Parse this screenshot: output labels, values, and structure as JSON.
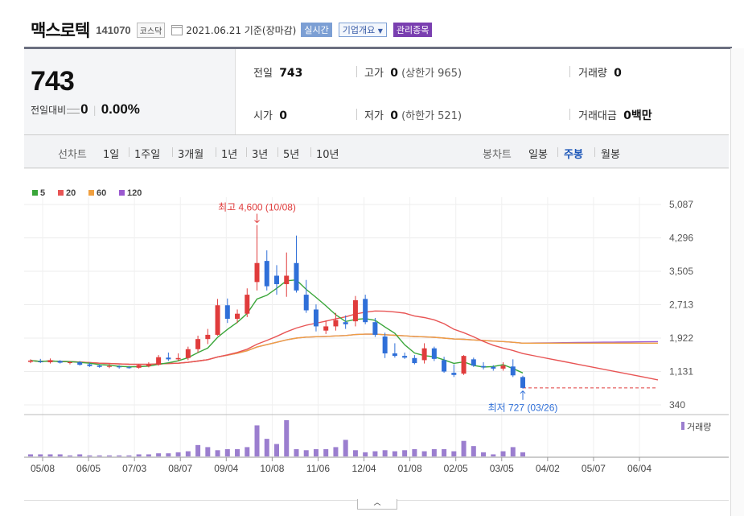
{
  "header": {
    "name": "맥스로텍",
    "code": "141070",
    "market": "코스닥",
    "date": "2021.06.21 기준(장마감)",
    "realtime_btn": "실시간",
    "company_btn": "기업개요",
    "managed_badge": "관리종목"
  },
  "price": {
    "current": "743",
    "change_label": "전일대비",
    "change_value": "0",
    "change_rate": "0.00%"
  },
  "info": {
    "prev_label": "전일",
    "prev_value": "743",
    "high_label": "고가",
    "high_value": "0",
    "high_limit": "(상한가 965)",
    "volume_label": "거래량",
    "volume_value": "0",
    "open_label": "시가",
    "open_value": "0",
    "low_label": "저가",
    "low_value": "0",
    "low_limit": "(하한가 521)",
    "amount_label": "거래대금",
    "amount_value": "0",
    "amount_unit": "백만"
  },
  "periods": {
    "line_label": "선차트",
    "line_items": [
      "1일",
      "1주일",
      "3개월",
      "1년",
      "3년",
      "5년",
      "10년"
    ],
    "candle_label": "봉차트",
    "candle_items": [
      "일봉",
      "주봉",
      "월봉"
    ],
    "candle_selected": "주봉"
  },
  "colors": {
    "ma5": "#3aa63a",
    "ma20": "#e85555",
    "ma60": "#f0a040",
    "ma120": "#9b59d0",
    "up": "#e03c3c",
    "down": "#2f6fd8",
    "volume": "#9b7ecf",
    "selected": "#1a55b8"
  },
  "chart_data": {
    "type": "candlestick",
    "legend": [
      "5",
      "20",
      "60",
      "120"
    ],
    "y_ticks": [
      "5,087",
      "4,296",
      "3,505",
      "2,713",
      "1,922",
      "1,131",
      "340"
    ],
    "ylim": [
      340,
      5087
    ],
    "x_labels": [
      "05/08",
      "06/05",
      "07/03",
      "08/07",
      "09/04",
      "10/08",
      "11/06",
      "12/04",
      "01/08",
      "02/05",
      "03/05",
      "04/02",
      "05/07",
      "06/04"
    ],
    "volume_label": "거래량",
    "annotations": {
      "high": "최고 4,600 (10/08)",
      "low": "최저 727 (03/26)"
    },
    "candles": [
      [
        1360,
        1420,
        1330,
        1390
      ],
      [
        1370,
        1430,
        1330,
        1350
      ],
      [
        1350,
        1440,
        1320,
        1400
      ],
      [
        1380,
        1400,
        1320,
        1340
      ],
      [
        1340,
        1380,
        1300,
        1350
      ],
      [
        1350,
        1380,
        1270,
        1290
      ],
      [
        1300,
        1340,
        1240,
        1260
      ],
      [
        1270,
        1300,
        1220,
        1240
      ],
      [
        1250,
        1310,
        1210,
        1260
      ],
      [
        1250,
        1280,
        1200,
        1230
      ],
      [
        1230,
        1260,
        1200,
        1220
      ],
      [
        1220,
        1300,
        1200,
        1280
      ],
      [
        1260,
        1350,
        1230,
        1300
      ],
      [
        1290,
        1520,
        1270,
        1470
      ],
      [
        1460,
        1580,
        1380,
        1420
      ],
      [
        1420,
        1560,
        1380,
        1450
      ],
      [
        1450,
        1720,
        1400,
        1660
      ],
      [
        1660,
        1980,
        1580,
        1900
      ],
      [
        1900,
        2140,
        1780,
        2000
      ],
      [
        2000,
        2850,
        1980,
        2700
      ],
      [
        2700,
        2860,
        2280,
        2380
      ],
      [
        2380,
        2600,
        2280,
        2500
      ],
      [
        2500,
        3100,
        2420,
        2950
      ],
      [
        3250,
        4600,
        3050,
        3700
      ],
      [
        3750,
        4000,
        3050,
        3150
      ],
      [
        3400,
        3650,
        2950,
        3200
      ],
      [
        3200,
        3950,
        2900,
        3400
      ],
      [
        3700,
        4350,
        3000,
        3050
      ],
      [
        2950,
        3300,
        2520,
        2580
      ],
      [
        2600,
        2720,
        2080,
        2200
      ],
      [
        2100,
        2340,
        2020,
        2200
      ],
      [
        2200,
        2520,
        2100,
        2350
      ],
      [
        2300,
        2460,
        2140,
        2250
      ],
      [
        2320,
        2920,
        2200,
        2820
      ],
      [
        2850,
        2950,
        2250,
        2300
      ],
      [
        2300,
        2400,
        1950,
        2000
      ],
      [
        1960,
        2050,
        1450,
        1560
      ],
      [
        1560,
        1800,
        1460,
        1500
      ],
      [
        1500,
        1580,
        1430,
        1460
      ],
      [
        1450,
        1520,
        1300,
        1330
      ],
      [
        1400,
        1800,
        1320,
        1680
      ],
      [
        1680,
        1720,
        1380,
        1430
      ],
      [
        1400,
        1480,
        1100,
        1130
      ],
      [
        1100,
        1300,
        1000,
        1050
      ],
      [
        1080,
        1520,
        1050,
        1500
      ],
      [
        1420,
        1460,
        1240,
        1270
      ],
      [
        1260,
        1350,
        1180,
        1230
      ],
      [
        1240,
        1280,
        1150,
        1200
      ],
      [
        1200,
        1350,
        1150,
        1270
      ],
      [
        1250,
        1420,
        1000,
        1040
      ],
      [
        1000,
        1030,
        727,
        743
      ]
    ],
    "volume": [
      2,
      2,
      2,
      2,
      1,
      2,
      1,
      1,
      1,
      1,
      1,
      2,
      2,
      3,
      3,
      4,
      5,
      11,
      9,
      6,
      7,
      7,
      9,
      30,
      17,
      12,
      35,
      7,
      6,
      7,
      7,
      9,
      16,
      6,
      4,
      5,
      6,
      5,
      6,
      7,
      5,
      7,
      7,
      5,
      15,
      10,
      4,
      2,
      5,
      9,
      4
    ]
  }
}
